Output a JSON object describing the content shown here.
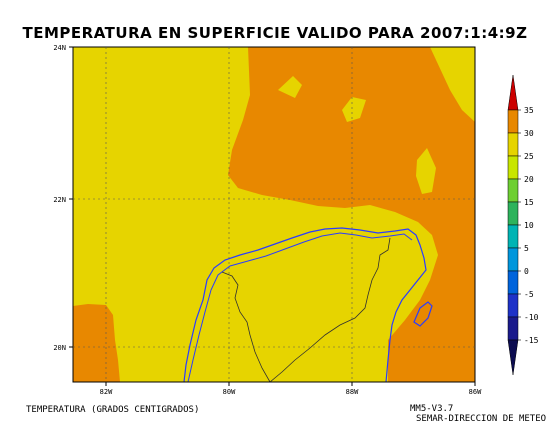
{
  "title": "TEMPERATURA EN SUPERFICIE VALIDO PARA 2007:1:4:9Z",
  "map": {
    "lat_labels": [
      "24N",
      "22N",
      "20N"
    ],
    "lon_labels": [
      "82W",
      "80W",
      "88W",
      "86W"
    ]
  },
  "colorbar": {
    "levels": [
      "35",
      "30",
      "25",
      "20",
      "15",
      "10",
      "5",
      "0",
      "-5",
      "-10",
      "-15"
    ],
    "colors": [
      "#cc0000",
      "#e88800",
      "#e6d400",
      "#c8e600",
      "#6ecf32",
      "#2db35c",
      "#00b4b4",
      "#0096dc",
      "#0064dc",
      "#1e32c8",
      "#1a1a8c",
      "#0c0c50"
    ]
  },
  "footer": {
    "left": "TEMPERATURA (GRADOS CENTIGRADOS)",
    "right_line1": "MM5-V3.7",
    "right_line2": "SEMAR-DIRECCION DE METEO"
  }
}
